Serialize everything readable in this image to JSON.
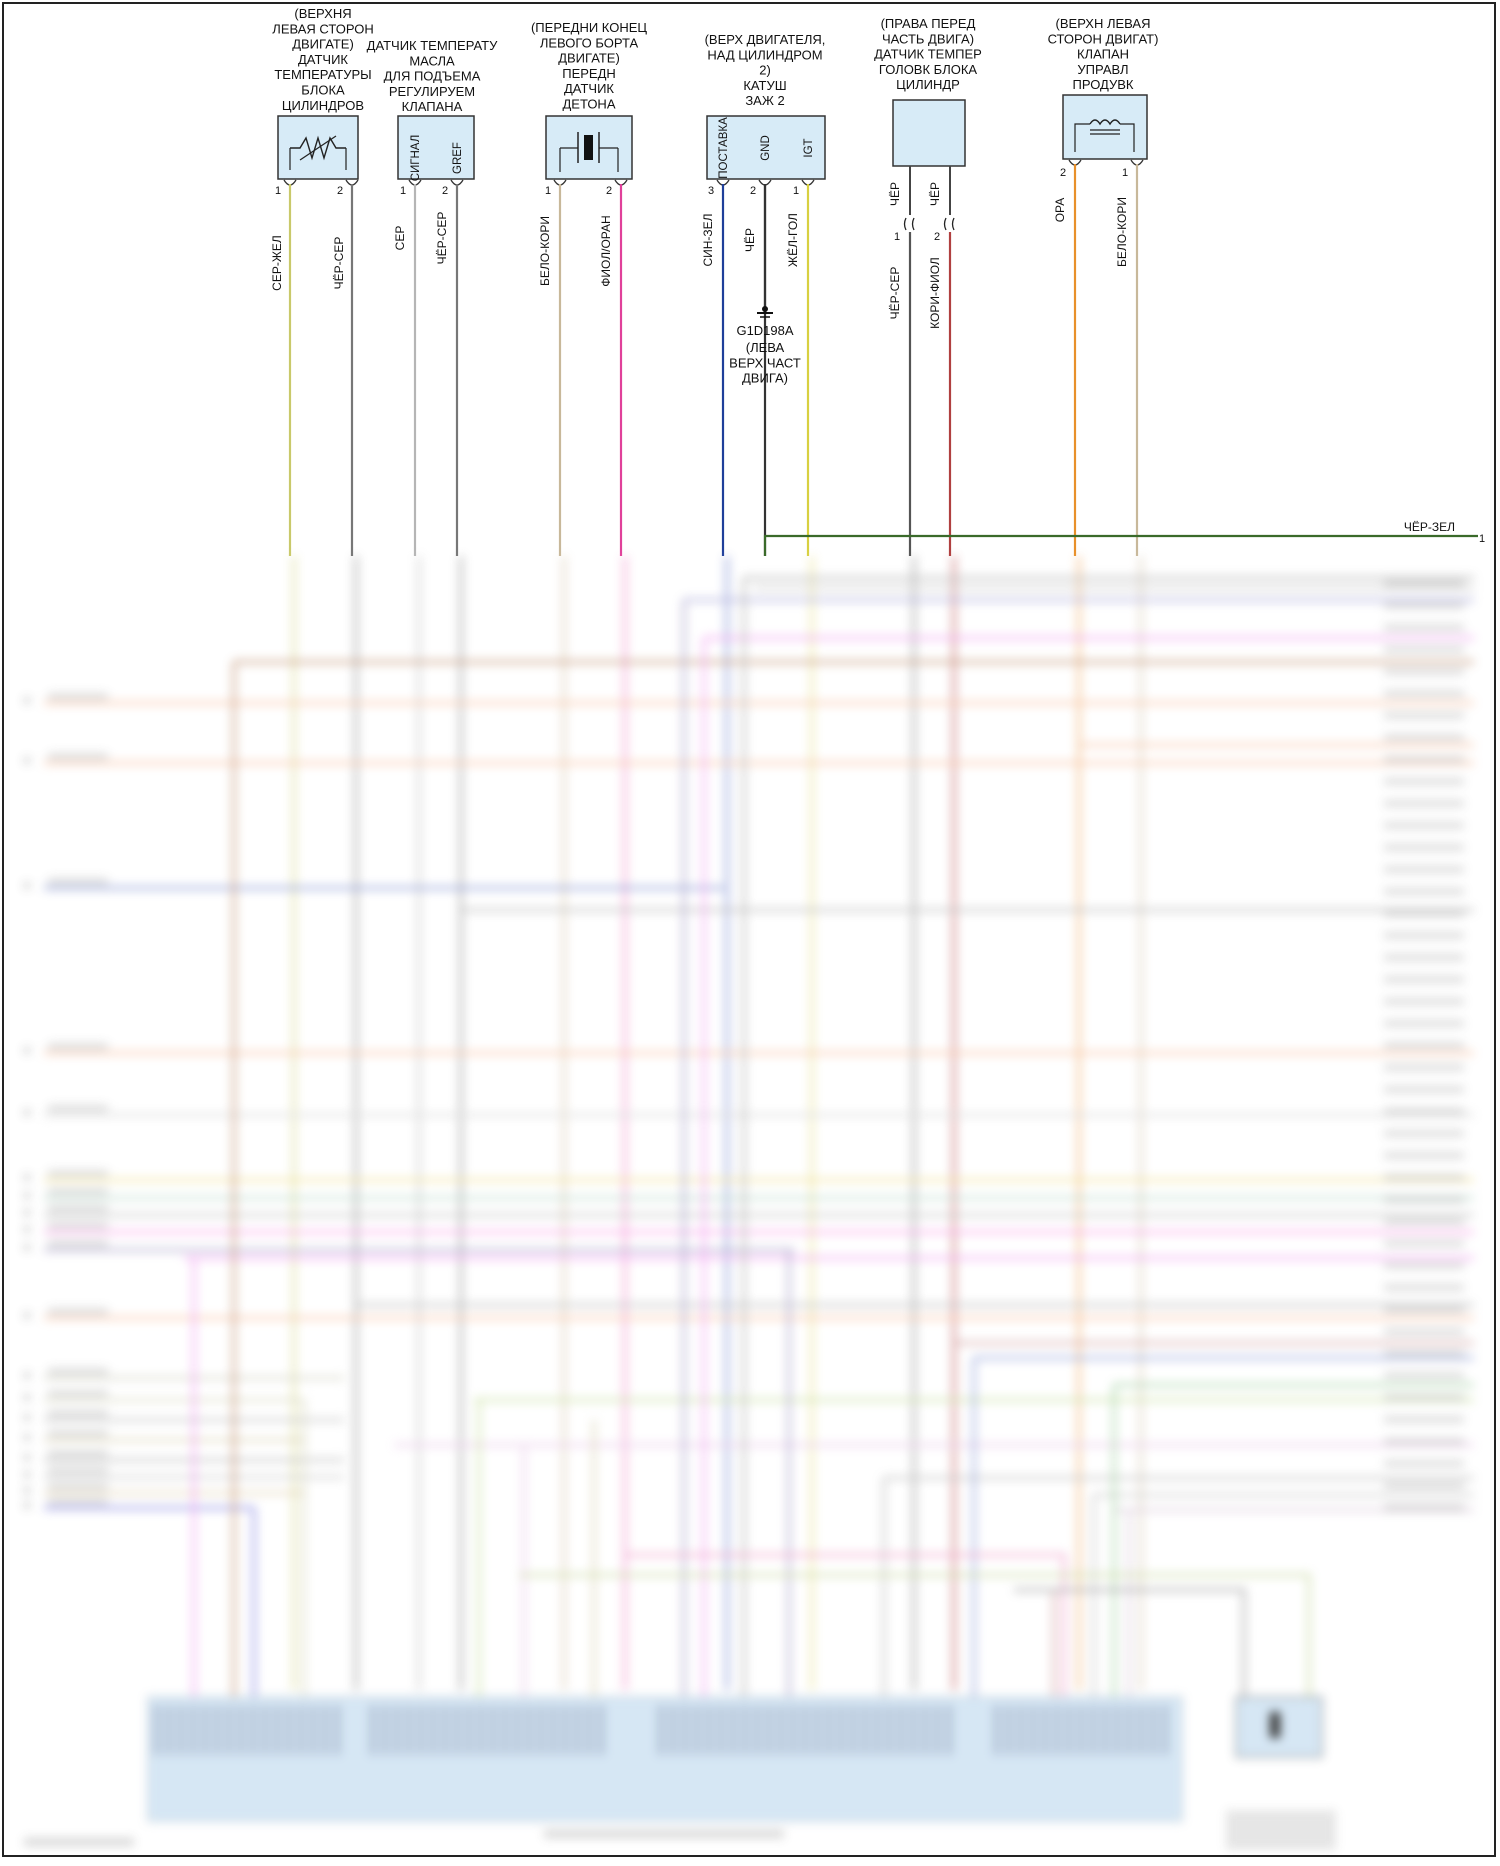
{
  "components": [
    {
      "id": "bt",
      "title": [
        "(ВЕРХНЯ",
        "ЛЕВАЯ СТОРОН",
        "ДВИГАТЕ)",
        "ДАТЧИК",
        "ТЕМПЕРАТУРЫ",
        "БЛОКА",
        "ЦИЛИНДРОВ"
      ],
      "pins": [
        {
          "num": "1",
          "wire": "СЕР-ЖЕЛ",
          "color": "#c9c96a"
        },
        {
          "num": "2",
          "wire": "ЧЁР-СЕР",
          "color": "#777777"
        }
      ]
    },
    {
      "id": "ot",
      "title": [
        "ДАТЧИК ТЕМПЕРАТУ",
        "МАСЛА",
        "ДЛЯ ПОДЪЕМА",
        "РЕГУЛИРУЕМ",
        "КЛАПАНА"
      ],
      "pins": [
        {
          "num": "1",
          "label": "СИГНАЛ",
          "wire": "СЕР",
          "color": "#b5b5b5"
        },
        {
          "num": "2",
          "label": "GREF",
          "wire": "ЧЁР-СЕР",
          "color": "#777777"
        }
      ]
    },
    {
      "id": "ks",
      "title": [
        "(ПЕРЕДНИ КОНЕЦ",
        "ЛЕВОГО БОРТА",
        "ДВИГАТЕ)",
        "ПЕРЕДН",
        "ДАТЧИК",
        "ДЕТОНА"
      ],
      "pins": [
        {
          "num": "1",
          "wire": "БЕЛО-КОРИ",
          "color": "#c8b89a"
        },
        {
          "num": "2",
          "wire": "ФИОЛ/ОРАН",
          "color": "#e0409a"
        }
      ]
    },
    {
      "id": "ic",
      "title": [
        "(ВЕРХ ДВИГАТЕЛЯ,",
        "НАД ЦИЛИНДРОМ",
        "2)",
        "КАТУШ",
        "ЗАЖ 2"
      ],
      "pins": [
        {
          "num": "3",
          "label": "ПОСТАВКА",
          "wire": "СИН-ЗЕЛ",
          "color": "#1f3f9a"
        },
        {
          "num": "2",
          "label": "GND",
          "wire": "ЧЁР",
          "color": "#333333"
        },
        {
          "num": "1",
          "label": "IGT",
          "wire": "ЖЁЛ-ГОЛ",
          "color": "#d8d040"
        }
      ],
      "ground": {
        "id": "G1D198A",
        "text": [
          "(ЛЕВА",
          "ВЕРХ ЧАСТ",
          "ДВИГА)"
        ]
      }
    },
    {
      "id": "ht",
      "title": [
        "(ПРАВА ПЕРЕД",
        "ЧАСТЬ ДВИГА)",
        "ДАТЧИК ТЕМПЕР",
        "ГОЛОВК БЛОКА",
        "ЦИЛИНДР"
      ],
      "pins": [
        {
          "num": "1",
          "wire_top": "ЧЁР",
          "wire": "ЧЁР-СЕР",
          "color": "#555555"
        },
        {
          "num": "2",
          "wire_top": "ЧЁР",
          "wire": "КОРИ-ФИОЛ",
          "color": "#b04040"
        }
      ]
    },
    {
      "id": "pv",
      "title": [
        "(ВЕРХН ЛЕВАЯ",
        "СТОРОН ДВИГАТ)",
        "КЛАПАН",
        "УПРАВЛ",
        "ПРОДУВК"
      ],
      "pins": [
        {
          "num": "2",
          "wire": "ОРА",
          "color": "#e8902a"
        },
        {
          "num": "1",
          "wire": "БЕЛО-КОРИ",
          "color": "#c8b89a"
        }
      ]
    }
  ],
  "bus": {
    "wire": "ЧЁР-ЗЕЛ",
    "num": "1",
    "color": "#3a6a2a"
  },
  "colors": {
    "background": "#ffffff",
    "component_fill": "#d7ebf7",
    "frame": "#222222"
  }
}
